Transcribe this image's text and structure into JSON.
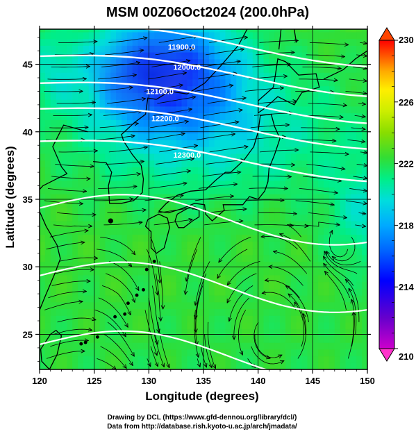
{
  "chart_data": {
    "type": "heatmap",
    "title": "MSM 00Z06Oct2024 (200.0hPa)",
    "xlabel": "Longitude (degrees)",
    "ylabel": "Latitude  (degrees)",
    "xlim": [
      120,
      150
    ],
    "ylim": [
      22.4,
      47.6
    ],
    "xticks": [
      "120",
      "125",
      "130",
      "135",
      "140",
      "145",
      "150"
    ],
    "xtick_values": [
      120,
      125,
      130,
      135,
      140,
      145,
      150
    ],
    "yticks": [
      "25",
      "30",
      "35",
      "40",
      "45"
    ],
    "ytick_values": [
      25,
      30,
      35,
      40,
      45
    ],
    "grid": true,
    "colorbar": {
      "placement": "right",
      "min": 210,
      "max": 230,
      "ticks": [
        "230",
        "226",
        "222",
        "218",
        "214",
        "210"
      ],
      "tick_values": [
        230,
        226,
        222,
        218,
        214,
        210
      ],
      "colors": [
        "#cc00cc",
        "#6600cc",
        "#0000ff",
        "#0066ff",
        "#00aaff",
        "#00dddd",
        "#00ee88",
        "#33dd33",
        "#88dd00",
        "#ccee00",
        "#ffee00",
        "#ffaa00",
        "#ff5500",
        "#ff0000"
      ]
    },
    "field_minimum": {
      "lon": 131.5,
      "lat": 44.5,
      "value": 214.5
    },
    "contours": [
      {
        "label": "11900.0",
        "lat_at_130": 47.0,
        "lon_label": 133.0,
        "lat_label": 46.3
      },
      {
        "label": "12000.0",
        "lat_at_130": 44.8,
        "lon_label": 133.5,
        "lat_label": 44.8
      },
      {
        "label": "12100.0",
        "lat_at_130": 42.8,
        "lon_label": 131.0,
        "lat_label": 43.0
      },
      {
        "label": "12200.0",
        "lat_at_130": 40.9,
        "lon_label": 131.5,
        "lat_label": 41.0
      },
      {
        "label": "12300.0",
        "lat_at_130": 38.5,
        "lon_label": 133.5,
        "lat_label": 38.3
      }
    ],
    "flow_direction": "westerly"
  },
  "credits": {
    "line1": "Drawing by DCL (https://www.gfd-dennou.org/library/dcl/)",
    "line2": "Data from http://database.rish.kyoto-u.ac.jp/arch/jmadata/"
  }
}
